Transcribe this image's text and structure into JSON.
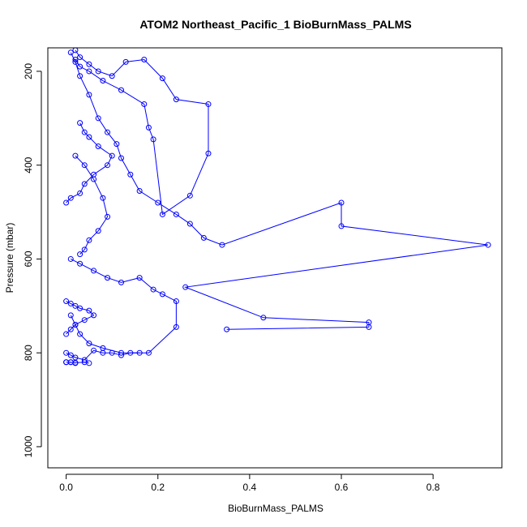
{
  "chart_data": {
    "type": "line",
    "title": "ATOM2 Northeast_Pacific_1 BioBurnMass_PALMS",
    "xlabel": "BioBurnMass_PALMS",
    "ylabel": "Pressure (mbar)",
    "xlim": [
      -0.04,
      0.95
    ],
    "ylim": [
      1045,
      150
    ],
    "y_reversed": true,
    "x_ticks": [
      0.0,
      0.2,
      0.4,
      0.6,
      0.8
    ],
    "x_tick_labels": [
      "0.0",
      "0.2",
      "0.4",
      "0.6",
      "0.8"
    ],
    "y_ticks": [
      200,
      400,
      600,
      800,
      1000
    ],
    "y_tick_labels": [
      "200",
      "400",
      "600",
      "800",
      "1000"
    ],
    "grid": false,
    "legend": "none",
    "colors": {
      "series": "#0000ff",
      "axis": "#000000",
      "background": "#ffffff"
    },
    "marker": "open-circle",
    "series": [
      {
        "x": [
          0.01,
          0.02,
          0.03,
          0.05,
          0.07,
          0.09,
          0.11,
          0.12,
          0.14,
          0.16,
          0.2,
          0.24,
          0.27,
          0.3,
          0.34,
          0.6,
          0.6,
          0.92,
          0.26,
          0.43,
          0.66,
          0.66,
          0.35
        ],
        "y": [
          160,
          180,
          210,
          250,
          300,
          330,
          355,
          385,
          420,
          455,
          480,
          505,
          525,
          555,
          570,
          480,
          530,
          570,
          660,
          725,
          735,
          745,
          750
        ]
      },
      {
        "x": [
          0.02,
          0.03,
          0.05,
          0.07,
          0.1,
          0.13,
          0.17,
          0.21,
          0.24,
          0.31,
          0.31,
          0.27,
          0.21,
          0.19,
          0.18,
          0.17,
          0.12,
          0.08,
          0.05,
          0.03,
          0.02
        ],
        "y": [
          155,
          170,
          185,
          200,
          210,
          180,
          175,
          215,
          260,
          270,
          375,
          465,
          505,
          345,
          320,
          270,
          240,
          220,
          200,
          190,
          175
        ]
      },
      {
        "x": [
          0.01,
          0.03,
          0.06,
          0.09,
          0.12,
          0.16,
          0.19,
          0.21,
          0.24,
          0.24,
          0.18,
          0.12,
          0.08,
          0.05,
          0.03,
          0.02,
          0.01
        ],
        "y": [
          600,
          610,
          625,
          640,
          650,
          640,
          665,
          675,
          690,
          745,
          800,
          800,
          790,
          780,
          760,
          740,
          720
        ]
      },
      {
        "x": [
          0.0,
          0.01,
          0.02,
          0.04,
          0.06,
          0.08,
          0.1,
          0.12,
          0.14,
          0.16
        ],
        "y": [
          800,
          805,
          810,
          815,
          795,
          800,
          800,
          805,
          800,
          800
        ]
      },
      {
        "x": [
          0.0,
          0.01,
          0.02,
          0.03,
          0.05,
          0.06,
          0.04,
          0.02,
          0.01,
          0.0
        ],
        "y": [
          690,
          695,
          700,
          705,
          710,
          720,
          730,
          740,
          750,
          760
        ]
      },
      {
        "x": [
          0.0,
          0.01,
          0.03,
          0.04,
          0.06,
          0.09,
          0.1,
          0.07,
          0.05,
          0.04,
          0.03
        ],
        "y": [
          480,
          470,
          460,
          440,
          420,
          400,
          380,
          360,
          340,
          330,
          310
        ]
      },
      {
        "x": [
          0.02,
          0.04,
          0.06,
          0.08,
          0.09,
          0.07,
          0.05,
          0.04,
          0.03
        ],
        "y": [
          380,
          400,
          430,
          470,
          510,
          540,
          560,
          580,
          590
        ]
      },
      {
        "x": [
          0.0,
          0.01,
          0.02,
          0.01,
          0.0,
          0.02,
          0.04,
          0.05
        ],
        "y": [
          820,
          820,
          822,
          820,
          820,
          821,
          820,
          822
        ]
      }
    ]
  }
}
